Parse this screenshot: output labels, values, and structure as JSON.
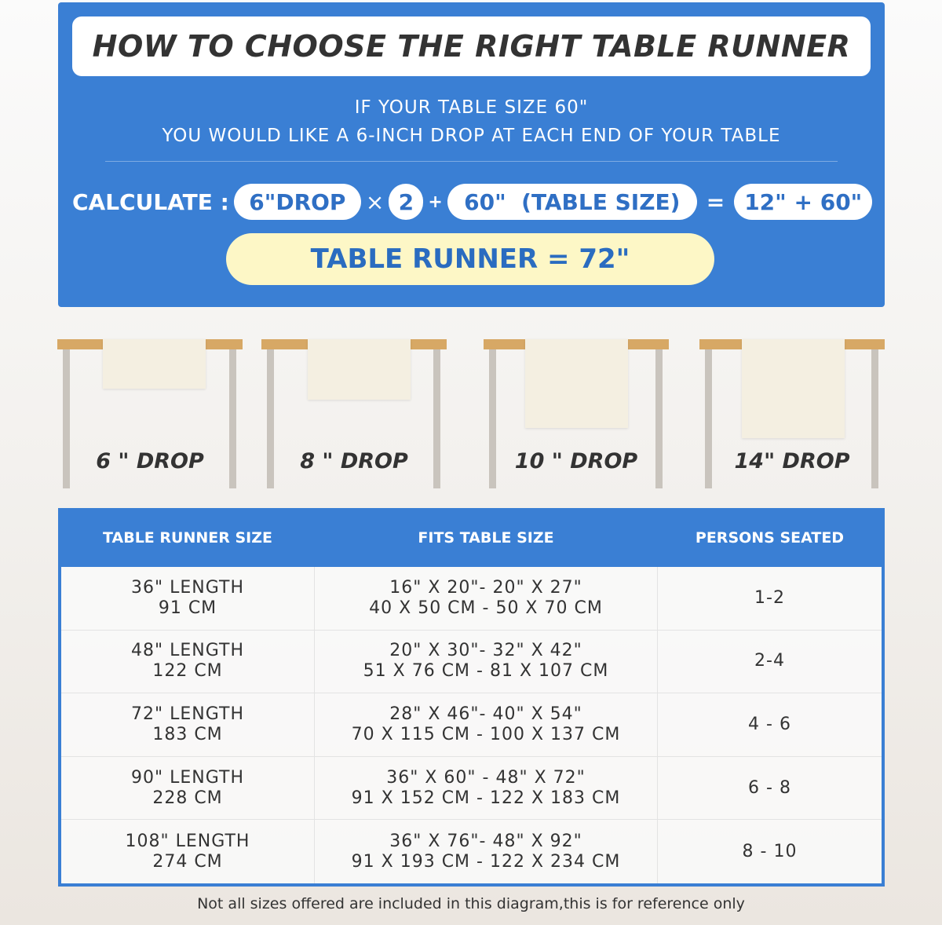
{
  "title": "HOW TO CHOOSE THE RIGHT TABLE RUNNER",
  "intro": [
    "IF YOUR TABLE SIZE 60\"",
    "YOU WOULD LIKE A 6-INCH DROP AT EACH END OF YOUR TABLE"
  ],
  "calc": {
    "label": "CALCULATE :",
    "drop": "6\"DROP",
    "times": "×",
    "multiplier": "2",
    "plus": "+",
    "table": "60\"  (TABLE SIZE)",
    "equals": "=",
    "sum": "12\" + 60\"",
    "result": "TABLE RUNNER = 72\""
  },
  "drops": [
    "6 \" DROP",
    "8 \" DROP",
    "10 \" DROP",
    "14\" DROP"
  ],
  "colors": {
    "blue": "#3a7fd4",
    "result_bg": "#fdf7c6",
    "tabletop": "#d7a865",
    "runner": "#f4efe1"
  },
  "table": {
    "headers": [
      "TABLE RUNNER SIZE",
      "FITS TABLE SIZE",
      "PERSONS SEATED"
    ],
    "rows": [
      {
        "size": [
          "36\" LENGTH",
          "91 CM"
        ],
        "fits": [
          "16\" X 20\"- 20\" X 27\"",
          "40 X 50 CM - 50 X 70 CM"
        ],
        "persons": "1-2"
      },
      {
        "size": [
          "48\" LENGTH",
          "122 CM"
        ],
        "fits": [
          "20\" X 30\"- 32\" X 42\"",
          "51 X 76 CM - 81 X 107 CM"
        ],
        "persons": "2-4"
      },
      {
        "size": [
          "72\" LENGTH",
          "183 CM"
        ],
        "fits": [
          "28\" X 46\"- 40\" X 54\"",
          "70 X 115 CM - 100 X 137 CM"
        ],
        "persons": "4 - 6"
      },
      {
        "size": [
          "90\" LENGTH",
          "228 CM"
        ],
        "fits": [
          "36\" X 60\" - 48\" X 72\"",
          "91 X 152 CM - 122 X 183 CM"
        ],
        "persons": "6 - 8"
      },
      {
        "size": [
          "108\" LENGTH",
          "274 CM"
        ],
        "fits": [
          "36\" X 76\"- 48\" X 92\"",
          "91 X 193 CM - 122 X 234 CM"
        ],
        "persons": "8 - 10"
      }
    ]
  },
  "footnote": "Not all sizes offered are included in this diagram,this is for reference only"
}
